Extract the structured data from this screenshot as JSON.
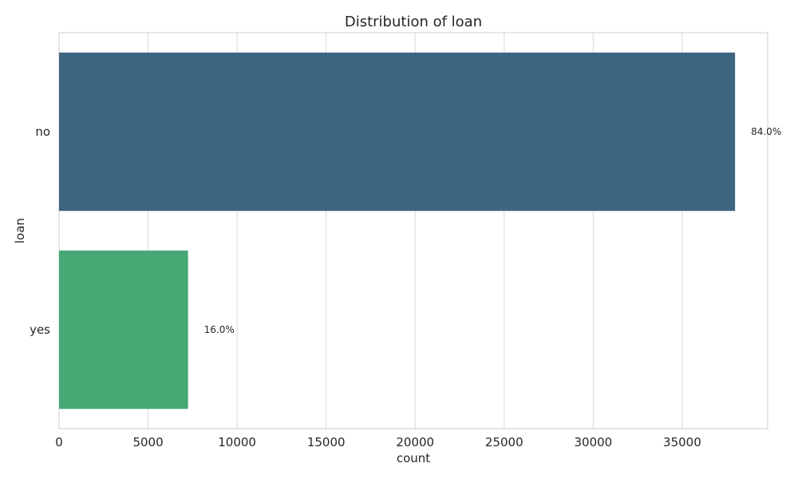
{
  "chart_data": {
    "type": "bar",
    "orientation": "horizontal",
    "title": "Distribution of loan",
    "xlabel": "count",
    "ylabel": "loan",
    "categories": [
      "no",
      "yes"
    ],
    "values": [
      37967,
      7244
    ],
    "data_labels": [
      "84.0%",
      "16.0%"
    ],
    "colors": [
      "#3e6683",
      "#45a875"
    ],
    "xlim": [
      0,
      39800
    ],
    "xticks": [
      0,
      5000,
      10000,
      15000,
      20000,
      25000,
      30000,
      35000
    ],
    "grid": true,
    "grid_axis": "x",
    "legend": false
  }
}
